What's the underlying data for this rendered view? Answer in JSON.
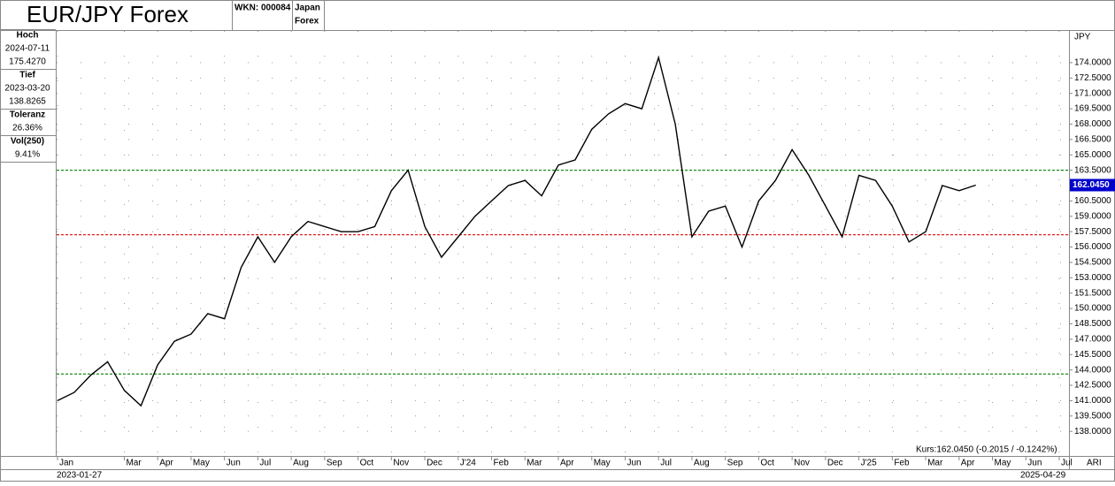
{
  "header": {
    "title": "EUR/JPY Forex",
    "wkn": "WKN: 000084",
    "region": "Japan",
    "market": "Forex"
  },
  "stats": [
    {
      "label": "Hoch",
      "lines": [
        "2024-07-11",
        "175.4270"
      ]
    },
    {
      "label": "Tief",
      "lines": [
        "2023-03-20",
        "138.8265"
      ]
    },
    {
      "label": "Toleranz",
      "lines": [
        "26.36%"
      ]
    },
    {
      "label": "Vol(250)",
      "lines": [
        "9.41%"
      ]
    }
  ],
  "footer": {
    "quote": "Kurs:162.0450 (-0.2015 / -0.1242%)",
    "start_date": "2023-01-27",
    "end_date": "2025-04-29",
    "corner": "ARI"
  },
  "chart_data": {
    "type": "line",
    "y_unit": "JPY",
    "color": "#000000",
    "grid": true,
    "categories": [
      "Jan",
      null,
      null,
      null,
      "Mar",
      null,
      "Apr",
      null,
      "May",
      null,
      "Jun",
      null,
      "Jul",
      null,
      "Aug",
      null,
      "Sep",
      null,
      "Oct",
      null,
      "Nov",
      null,
      "Dec",
      null,
      "J'24",
      null,
      "Feb",
      null,
      "Mar",
      null,
      "Apr",
      null,
      "May",
      null,
      "Jun",
      null,
      "Jul",
      null,
      "Aug",
      null,
      "Sep",
      null,
      "Oct",
      null,
      "Nov",
      null,
      "Dec",
      null,
      "J'25",
      null,
      "Feb",
      null,
      "Mar",
      null,
      "Apr",
      null,
      "May",
      null,
      "Jun",
      null,
      "Jul",
      null
    ],
    "values": [
      141.0,
      141.8,
      143.5,
      144.8,
      142.0,
      140.5,
      144.5,
      146.8,
      147.5,
      149.5,
      149.0,
      154.0,
      157.0,
      154.5,
      157.0,
      158.5,
      158.0,
      157.5,
      157.5,
      158.0,
      161.5,
      163.5,
      158.0,
      155.0,
      157.0,
      159.0,
      160.5,
      162.0,
      162.5,
      161.0,
      164.0,
      164.5,
      167.5,
      169.0,
      170.0,
      169.5,
      174.5,
      168.0,
      157.0,
      159.5,
      160.0,
      156.0,
      160.5,
      162.5,
      165.5,
      163.0,
      160.0,
      157.0,
      163.0,
      162.5,
      160.0,
      156.5,
      157.5,
      162.0,
      161.5,
      162.045,
      null,
      null,
      null,
      null,
      null,
      null
    ],
    "ylim": [
      135.6,
      177.1
    ],
    "yticks": [
      {
        "value": 138,
        "label": "138.0000"
      },
      {
        "value": 139.5,
        "label": "139.5000"
      },
      {
        "value": 141,
        "label": "141.0000"
      },
      {
        "value": 142.5,
        "label": "142.5000"
      },
      {
        "value": 144,
        "label": "144.0000"
      },
      {
        "value": 145.5,
        "label": "145.5000"
      },
      {
        "value": 147,
        "label": "147.0000"
      },
      {
        "value": 148.5,
        "label": "148.5000"
      },
      {
        "value": 150,
        "label": "150.0000"
      },
      {
        "value": 151.5,
        "label": "151.5000"
      },
      {
        "value": 153,
        "label": "153.0000"
      },
      {
        "value": 154.5,
        "label": "154.5000"
      },
      {
        "value": 156,
        "label": "156.0000"
      },
      {
        "value": 157.5,
        "label": "157.5000"
      },
      {
        "value": 159,
        "label": "159.0000"
      },
      {
        "value": 160.5,
        "label": "160.5000"
      },
      {
        "value": 162,
        "label": "162.0000"
      },
      {
        "value": 163.5,
        "label": "163.5000"
      },
      {
        "value": 165,
        "label": "165.0000"
      },
      {
        "value": 166.5,
        "label": "166.5000"
      },
      {
        "value": 168,
        "label": "168.0000"
      },
      {
        "value": 169.5,
        "label": "169.5000"
      },
      {
        "value": 171,
        "label": "171.0000"
      },
      {
        "value": 172.5,
        "label": "172.5000"
      },
      {
        "value": 174,
        "label": "174.0000"
      }
    ],
    "reference_lines": [
      {
        "value": 163.5,
        "color": "#1a8a1a"
      },
      {
        "value": 157.2,
        "color": "#e02020"
      },
      {
        "value": 143.6,
        "color": "#1a8a1a"
      }
    ],
    "last_price": {
      "value": 162.045,
      "label": "162.0450",
      "color": "#0000cc"
    }
  }
}
